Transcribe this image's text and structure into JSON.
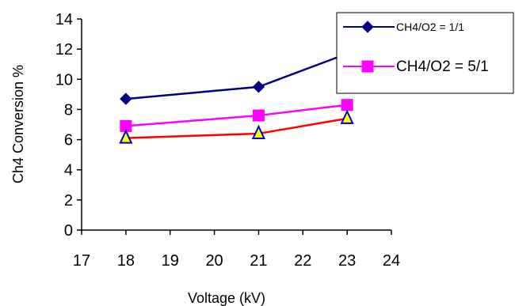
{
  "chart_data": {
    "type": "line",
    "xlabel": "Voltage (kV)",
    "ylabel": "Ch4 Conversion %",
    "xlim": [
      17,
      24
    ],
    "ylim": [
      0,
      14
    ],
    "x_ticks": [
      17,
      18,
      19,
      20,
      21,
      22,
      23,
      24
    ],
    "y_ticks": [
      0,
      2,
      4,
      6,
      8,
      10,
      12,
      14
    ],
    "grid": false,
    "legend_position": "top-right",
    "series": [
      {
        "name": "CH4/O2 = 1/1",
        "x": [
          18,
          21,
          23
        ],
        "values": [
          8.7,
          9.5,
          11.7
        ],
        "color": "#000080",
        "marker": "diamond"
      },
      {
        "name": "CH4/O2 = 5/1",
        "x": [
          18,
          21,
          23
        ],
        "values": [
          6.9,
          7.6,
          8.3
        ],
        "color": "#ff00ff",
        "marker": "square"
      },
      {
        "name": "",
        "x": [
          18,
          21,
          23
        ],
        "values": [
          6.1,
          6.4,
          7.4
        ],
        "color": "#ff0000",
        "marker": "triangle",
        "marker_fill": "#ffff00",
        "marker_edge": "#0000cc"
      }
    ]
  }
}
